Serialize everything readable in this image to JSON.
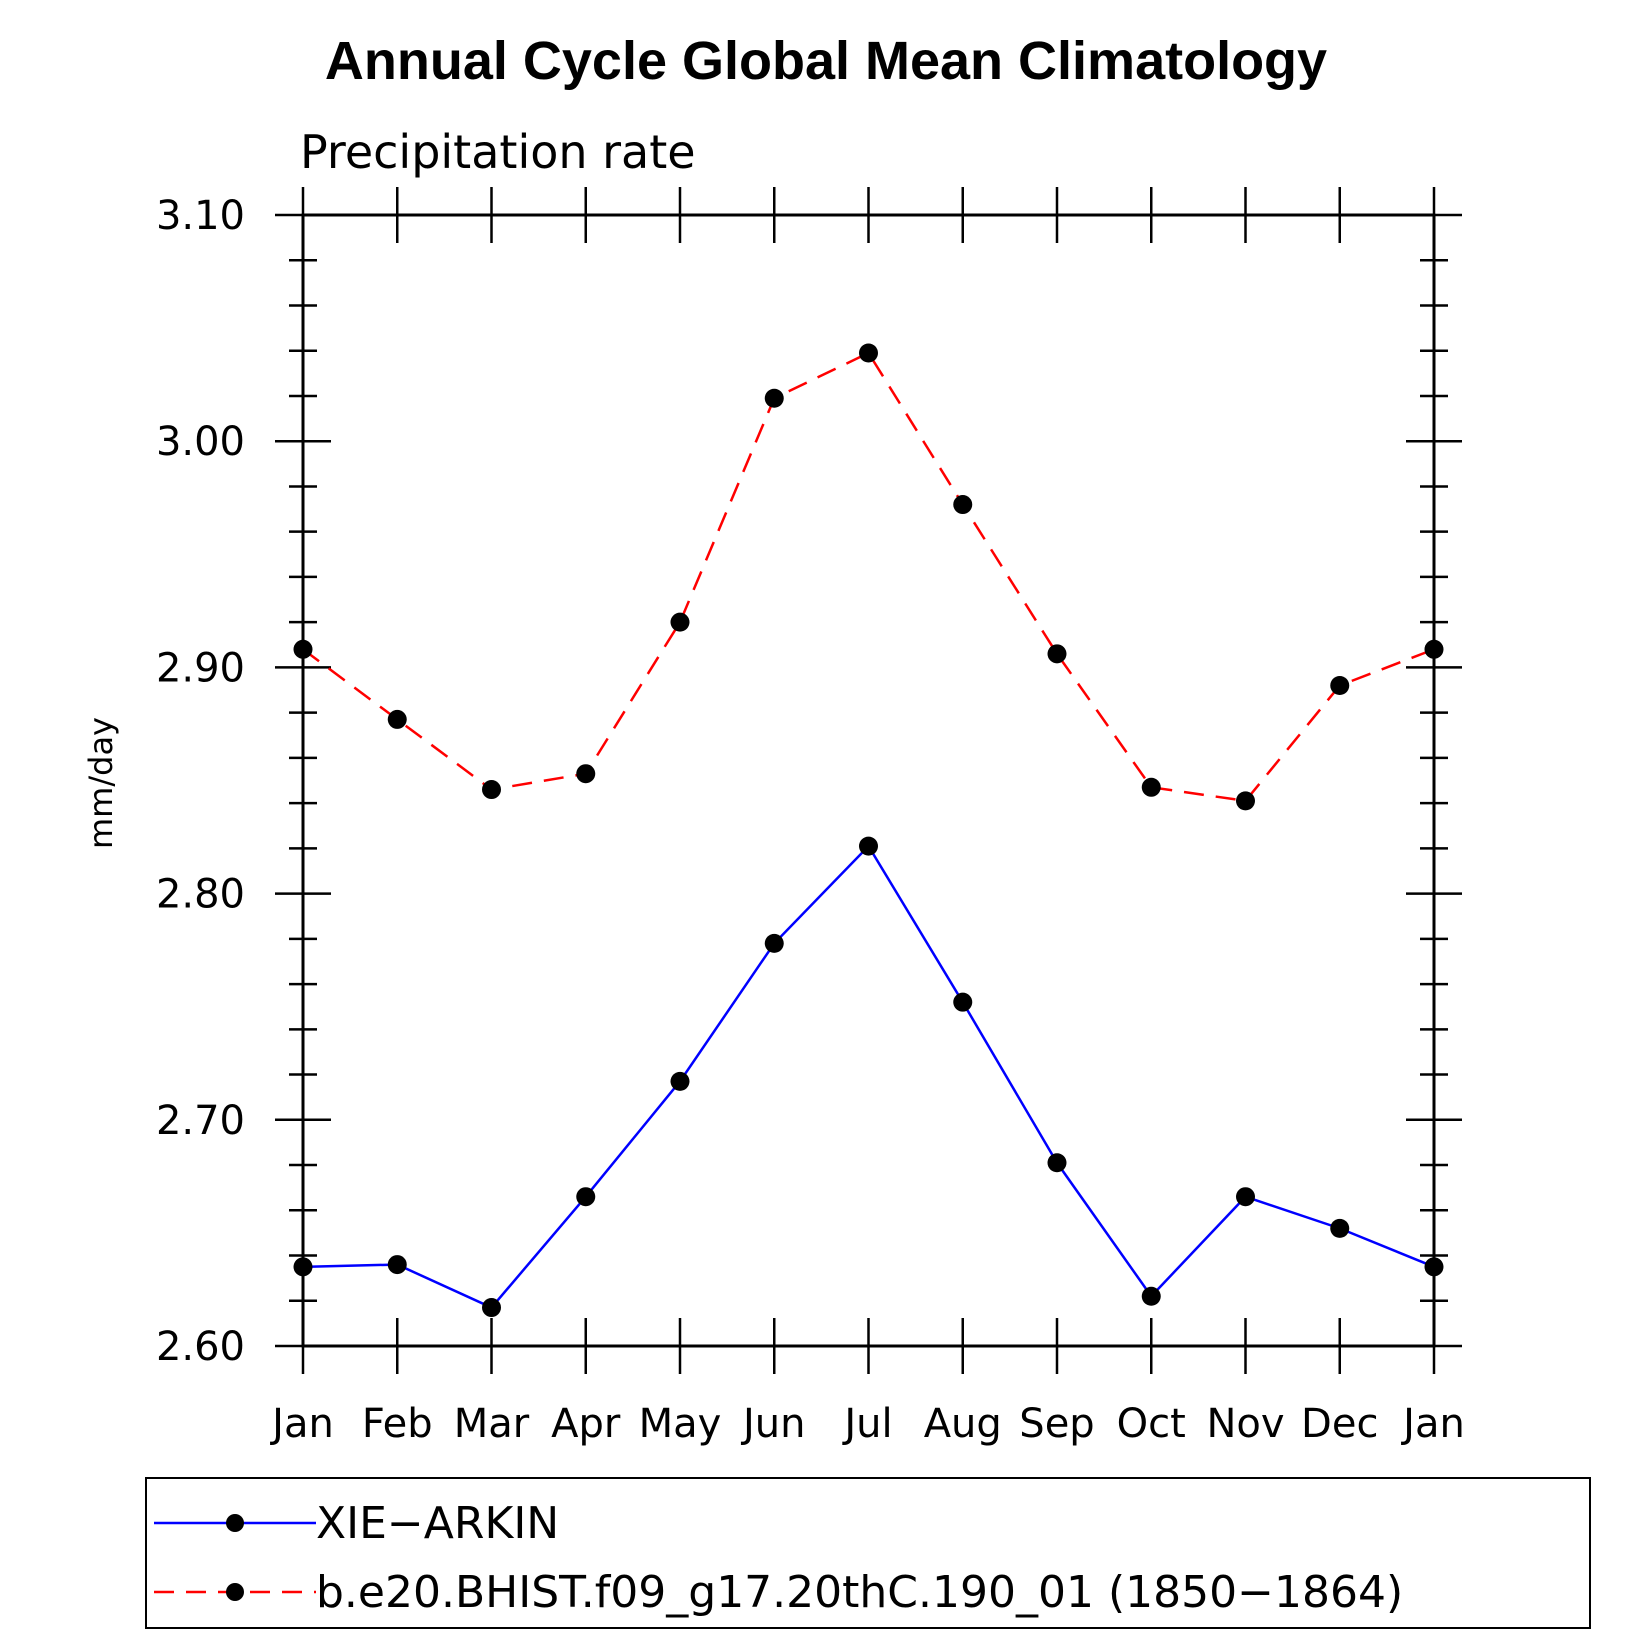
{
  "chart_data": {
    "type": "line",
    "title": "Annual Cycle Global Mean Climatology",
    "subtitle": "Precipitation rate",
    "ylabel": "mm/day",
    "xlabel": "",
    "ylim": [
      2.6,
      3.1
    ],
    "y_major_ticks": [
      2.6,
      2.7,
      2.8,
      2.9,
      3.0,
      3.1
    ],
    "y_tick_labels": [
      "2.60",
      "2.70",
      "2.80",
      "2.90",
      "3.00",
      "3.10"
    ],
    "y_minor_step": 0.02,
    "categories": [
      "Jan",
      "Feb",
      "Mar",
      "Apr",
      "May",
      "Jun",
      "Jul",
      "Aug",
      "Sep",
      "Oct",
      "Nov",
      "Dec",
      "Jan"
    ],
    "series": [
      {
        "name": "XIE−ARKIN",
        "color": "#0000ff",
        "dash": "solid",
        "values": [
          2.635,
          2.636,
          2.617,
          2.666,
          2.717,
          2.778,
          2.821,
          2.752,
          2.681,
          2.622,
          2.666,
          2.652,
          2.635
        ]
      },
      {
        "name": "b.e20.BHIST.f09_g17.20thC.190_01 (1850−1864)",
        "color": "#ff0000",
        "dash": "dashed",
        "values": [
          2.908,
          2.877,
          2.846,
          2.853,
          2.92,
          3.019,
          3.039,
          2.972,
          2.906,
          2.847,
          2.841,
          2.892,
          2.908
        ]
      }
    ],
    "marker": "filled-circle",
    "marker_color": "#000000",
    "legend_position": "bottom",
    "grid": false
  }
}
